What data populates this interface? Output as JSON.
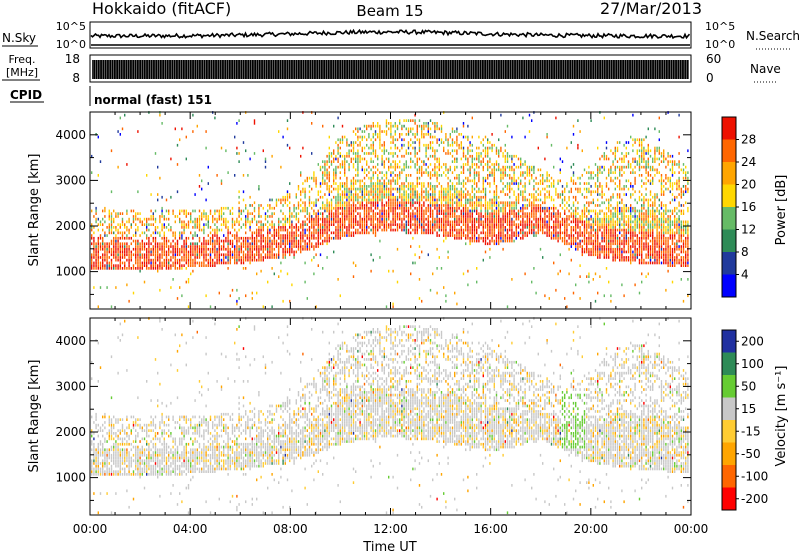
{
  "header": {
    "title_left": "Hokkaido (fitACF)",
    "title_center": "Beam 15",
    "title_right": "27/Mar/2013"
  },
  "noise_panel": {
    "left_label": "N.Sky",
    "right_label": "N.Search",
    "tick_top": "10^5",
    "tick_bottom": "10^0",
    "right_tick_top": "10^5",
    "right_tick_bottom": "10^0"
  },
  "freq_panel": {
    "left_label_line1": "Freq.",
    "left_label_line2": "[MHz]",
    "tick_top": "18",
    "tick_bottom": "8",
    "right_label": "Nave",
    "right_tick_top": "60",
    "right_tick_bottom": "0"
  },
  "cpid_panel": {
    "label": "CPID",
    "value": "normal (fast) 151"
  },
  "colors": {
    "power_scale": [
      "#0000ff",
      "#203a9c",
      "#2e8b57",
      "#66bb66",
      "#ffd700",
      "#ffa500",
      "#ff6600",
      "#ee1100"
    ],
    "velocity_scale": [
      "#ff0000",
      "#ff6600",
      "#ffa500",
      "#ffcc33",
      "#c8c8c8",
      "#66cc33",
      "#2e8b57",
      "#2030a0"
    ]
  },
  "chart_data": [
    {
      "type": "heatmap",
      "name": "power",
      "ylabel": "Slant Range [km]",
      "ylim": [
        180,
        4500
      ],
      "yticks": [
        1000,
        2000,
        3000,
        4000
      ],
      "xlim": [
        0,
        24
      ],
      "colorbar_label": "Power [dB]",
      "colorbar_ticks": [
        "4",
        "8",
        "12",
        "16",
        "20",
        "24",
        "28"
      ],
      "scatter_band": {
        "hours": [
          0,
          2,
          4,
          6,
          8,
          9,
          10,
          11,
          12,
          13,
          14,
          15,
          16,
          17,
          18,
          19,
          20,
          21,
          22,
          23,
          24
        ],
        "lower_km": [
          1000,
          1000,
          1050,
          1150,
          1300,
          1500,
          1700,
          1800,
          1850,
          1800,
          1750,
          1650,
          1550,
          1650,
          1800,
          1550,
          1300,
          1200,
          1150,
          1100,
          1050
        ],
        "upper_km": [
          2300,
          2300,
          2300,
          2400,
          2700,
          3200,
          4000,
          4200,
          4300,
          4300,
          4200,
          4000,
          3800,
          3500,
          3200,
          3000,
          3300,
          3800,
          3900,
          3600,
          3200
        ]
      }
    },
    {
      "type": "heatmap",
      "name": "velocity",
      "ylabel": "Slant Range [km]",
      "xlabel": "Time UT",
      "ylim": [
        180,
        4500
      ],
      "yticks": [
        1000,
        2000,
        3000,
        4000
      ],
      "xticks": [
        "00:00",
        "04:00",
        "08:00",
        "12:00",
        "16:00",
        "20:00",
        "00:00"
      ],
      "xlim": [
        0,
        24
      ],
      "colorbar_label": "Velocity [m s⁻¹]",
      "colorbar_ticks": [
        "-200",
        "-100",
        "-50",
        "-15",
        "15",
        "50",
        "100",
        "200"
      ]
    }
  ]
}
